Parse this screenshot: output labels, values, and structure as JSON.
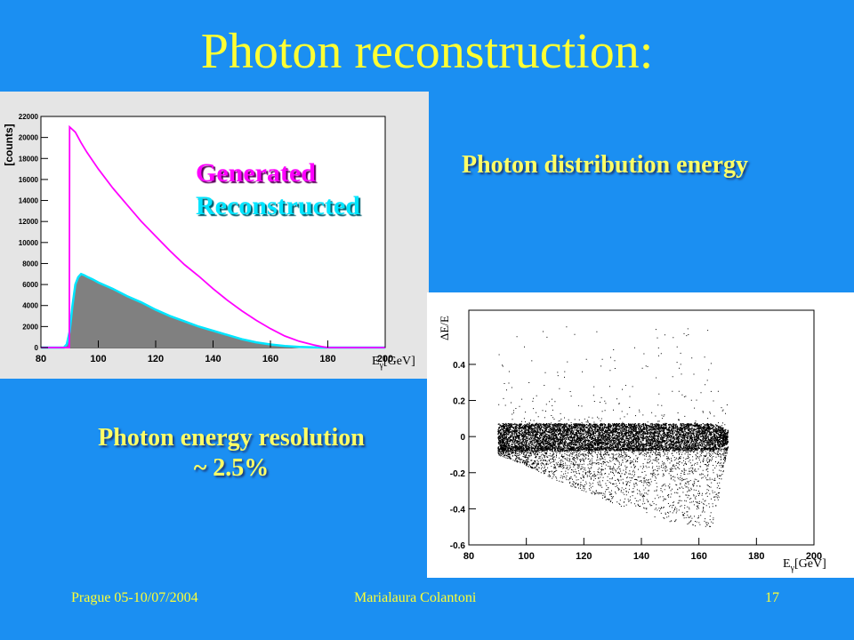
{
  "slide": {
    "title": "Photon reconstruction:",
    "caption_energy": "Photon distribution energy",
    "caption_resolution_line1": "Photon energy resolution",
    "caption_resolution_line2": "~ 2.5%",
    "footer_left": "Prague 05-10/07/2004",
    "footer_center": "Marialaura Colantoni",
    "footer_right": "17"
  },
  "colors": {
    "background": "#1b8ff2",
    "title": "#ffff33",
    "generated": "#ff00ff",
    "reconstructed_fill": "#808080",
    "reconstructed_edge": "#00e5ff"
  },
  "chart_data": [
    {
      "type": "area",
      "ylabel": "[counts]",
      "xlabel": "Eγ[GeV]",
      "xlabel_base": "E",
      "xlabel_sub": "γ",
      "xlabel_unit": "[GeV]",
      "xlim": [
        80,
        200
      ],
      "ylim": [
        0,
        22000
      ],
      "xticks": [
        80,
        100,
        120,
        140,
        160,
        180,
        200
      ],
      "yticks": [
        0,
        2000,
        4000,
        6000,
        8000,
        10000,
        12000,
        14000,
        16000,
        18000,
        20000,
        22000
      ],
      "legend": [
        "Generated",
        "Reconstructed"
      ],
      "legend_position": "top-center",
      "grid": false,
      "series": [
        {
          "name": "Generated",
          "x": [
            80,
            88,
            89.9,
            90,
            92,
            94,
            96,
            98,
            100,
            105,
            110,
            115,
            120,
            125,
            130,
            135,
            140,
            145,
            150,
            155,
            160,
            165,
            170,
            175,
            178,
            180,
            185,
            200
          ],
          "y": [
            0,
            0,
            0,
            21000,
            20500,
            19500,
            18600,
            17800,
            17000,
            15200,
            13600,
            12000,
            10600,
            9200,
            7900,
            6800,
            5600,
            4500,
            3500,
            2600,
            1800,
            1100,
            600,
            250,
            80,
            0,
            0,
            0
          ]
        },
        {
          "name": "Reconstructed",
          "x": [
            80,
            88,
            89,
            90,
            91,
            92,
            93,
            94,
            95,
            96,
            98,
            100,
            105,
            110,
            115,
            120,
            125,
            130,
            135,
            140,
            145,
            150,
            155,
            160,
            165,
            170,
            175,
            178,
            180,
            200
          ],
          "y": [
            0,
            0,
            300,
            1500,
            4000,
            6000,
            6700,
            7000,
            6900,
            6750,
            6500,
            6200,
            5600,
            4900,
            4300,
            3600,
            3000,
            2500,
            2000,
            1600,
            1200,
            800,
            500,
            300,
            150,
            60,
            20,
            0,
            0,
            0
          ]
        }
      ]
    },
    {
      "type": "scatter",
      "ylabel": "ΔE/E",
      "xlabel": "Eγ[GeV]",
      "xlabel_base": "E",
      "xlabel_sub": "γ",
      "xlabel_unit": "[GeV]",
      "xlim": [
        80,
        200
      ],
      "ylim": [
        -0.6,
        0.7
      ],
      "xticks": [
        80,
        100,
        120,
        140,
        160,
        180,
        200
      ],
      "yticks": [
        -0.6,
        -0.4,
        -0.2,
        0,
        0.2,
        0.4
      ],
      "grid": false,
      "series": [
        {
          "name": "",
          "band_x": [
            90,
            170
          ],
          "band_center": 0,
          "band_halfwidth": 0.1,
          "lower_envelope": [
            [
              90,
              -0.1
            ],
            [
              100,
              -0.16
            ],
            [
              110,
              -0.24
            ],
            [
              120,
              -0.3
            ],
            [
              130,
              -0.37
            ],
            [
              140,
              -0.42
            ],
            [
              150,
              -0.47
            ],
            [
              160,
              -0.5
            ],
            [
              165,
              -0.5
            ],
            [
              170,
              -0.05
            ]
          ],
          "upper_envelope": [
            [
              90,
              0.1
            ],
            [
              120,
              0.1
            ],
            [
              150,
              0.09
            ],
            [
              170,
              0.05
            ]
          ]
        }
      ]
    }
  ]
}
